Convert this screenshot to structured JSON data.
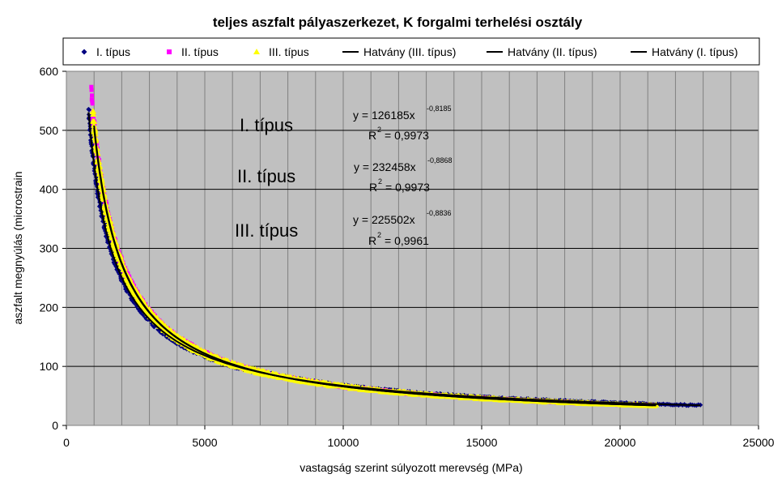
{
  "chart_data": {
    "type": "scatter",
    "title": "teljes aszfalt pályaszerkezet, K forgalmi terhelési osztály",
    "xlabel": "vastagság szerint súlyozott merevség (MPa)",
    "ylabel": "aszfalt megnyúlás (microstrain",
    "xlim": [
      0,
      25000
    ],
    "ylim": [
      0,
      600
    ],
    "x_ticks": [
      0,
      5000,
      10000,
      15000,
      20000,
      25000
    ],
    "y_ticks": [
      0,
      100,
      200,
      300,
      400,
      500,
      600
    ],
    "x_tick_labels": [
      "0",
      "5000",
      "10000",
      "15000",
      "20000",
      "25000"
    ],
    "y_tick_labels": [
      "0",
      "100",
      "200",
      "300",
      "400",
      "500",
      "600"
    ],
    "grid": true,
    "plot_background": "#c0c0c0",
    "legend_position": "top",
    "series": [
      {
        "name": "I. típus",
        "kind": "scatter",
        "marker": "diamond",
        "color": "#000080",
        "x_range": [
          800,
          22900
        ],
        "fit": {
          "a": 126185,
          "b": -0.8185
        }
      },
      {
        "name": "II. típus",
        "kind": "scatter",
        "marker": "square",
        "color": "#ff00ff",
        "x_range": [
          900,
          21200
        ],
        "fit": {
          "a": 232458,
          "b": -0.8868
        }
      },
      {
        "name": "III. típus",
        "kind": "scatter",
        "marker": "triangle",
        "color": "#ffff00",
        "x_range": [
          950,
          21300
        ],
        "fit": {
          "a": 225502,
          "b": -0.8836
        }
      },
      {
        "name": "Hatvány (III. típus)",
        "kind": "trendline",
        "color": "#000000",
        "a": 225502,
        "b": -0.8836,
        "x_range": [
          1000,
          21300
        ]
      },
      {
        "name": "Hatvány (II. típus)",
        "kind": "trendline",
        "color": "#000000",
        "a": 232458,
        "b": -0.8868,
        "x_range": [
          1000,
          21200
        ]
      },
      {
        "name": "Hatvány (I. típus)",
        "kind": "trendline",
        "color": "#000000",
        "a": 126185,
        "b": -0.8185,
        "x_range": [
          800,
          22900
        ]
      }
    ],
    "annotations": {
      "type1_label": "I. típus",
      "type2_label": "II. típus",
      "type3_label": "III. típus",
      "eq1_main": "y = 126185x",
      "eq1_exp": "-0,8185",
      "r1_text": "= 0,9973",
      "eq2_main": "y = 232458x",
      "eq2_exp": "-0,8868",
      "r2_text": "= 0,9973",
      "eq3_main": "y = 225502x",
      "eq3_exp": "-0,8836",
      "r3_text": "= 0,9961",
      "r_letter": "R",
      "r_exp": "2"
    }
  }
}
